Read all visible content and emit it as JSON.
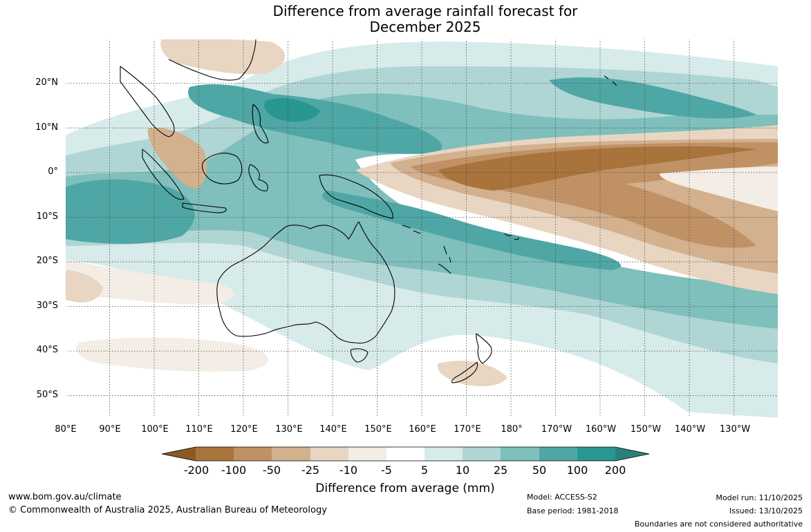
{
  "title": {
    "line1": "Difference from average rainfall forecast for",
    "line2": "December 2025"
  },
  "map": {
    "latitude_labels": [
      "20°N",
      "10°N",
      "0°",
      "10°S",
      "20°S",
      "30°S",
      "40°S",
      "50°S"
    ],
    "latitude_values": [
      20,
      10,
      0,
      -10,
      -20,
      -30,
      -40,
      -50
    ],
    "longitude_labels": [
      "80°E",
      "90°E",
      "100°E",
      "110°E",
      "120°E",
      "130°E",
      "140°E",
      "150°E",
      "160°E",
      "170°E",
      "180°",
      "170°W",
      "160°W",
      "150°W",
      "140°W",
      "130°W"
    ],
    "longitude_values": [
      80,
      90,
      100,
      110,
      120,
      130,
      140,
      150,
      160,
      170,
      180,
      190,
      200,
      210,
      220,
      230
    ],
    "extent": {
      "lon_min": 80,
      "lon_max": 240,
      "lat_min": -55,
      "lat_max": 30
    },
    "features": [
      "Australia",
      "New Zealand",
      "Indonesia",
      "Papua New Guinea",
      "Philippines",
      "Southeast Asia",
      "Pacific Islands"
    ]
  },
  "legend": {
    "tick_labels": [
      "-200",
      "-100",
      "-50",
      "-25",
      "-10",
      "-5",
      "5",
      "10",
      "25",
      "50",
      "100",
      "200"
    ],
    "colors": [
      "#8c5a22",
      "#a8743c",
      "#c09165",
      "#d3b08e",
      "#e8d6c2",
      "#f3ede6",
      "#ffffff",
      "#d7ebea",
      "#afd6d4",
      "#7fbfbc",
      "#4fa7a5",
      "#2a9692",
      "#2a7f7c"
    ],
    "title": "Difference from average (mm)"
  },
  "footer": {
    "url": "www.bom.gov.au/climate",
    "copyright": "© Commonwealth of Australia 2025, Australian Bureau of Meteorology",
    "model": "Model: ACCESS-S2",
    "base_period": "Base period: 1981-2018",
    "model_run": "Model run: 11/10/2025",
    "issued": "Issued: 13/10/2025",
    "disclaimer": "Boundaries are not considered authoritative"
  }
}
